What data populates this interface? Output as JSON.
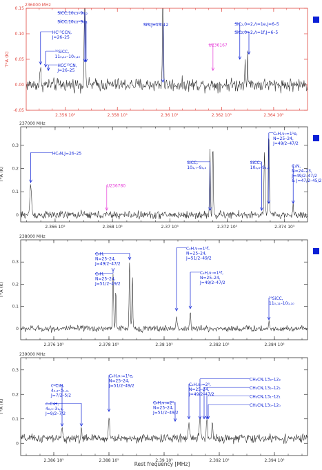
{
  "figure": {
    "xlabel": "Rest frequency [MHz]",
    "colors": {
      "axis_red": "#e0473f",
      "axis_black": "#333333",
      "annot_blue": "#0a1fd6",
      "annot_magenta": "#e63cd8",
      "trace": "#333333"
    }
  },
  "chart_data": [
    {
      "type": "line",
      "header": "236000 MHz",
      "ylabel": "T*A (K)",
      "xlim": [
        2354.5,
        2365.3
      ],
      "ylim": [
        -0.05,
        0.15
      ],
      "x_ticks": [
        2356,
        2358,
        2360,
        2362,
        2364
      ],
      "x_tick_labels": [
        "2.356 10⁵",
        "2.358 10⁵",
        "2.36 10⁵",
        "2.362 10⁵",
        "2.364 10⁵"
      ],
      "y_ticks": [
        -0.05,
        0.0,
        0.05,
        0.1,
        0.15
      ],
      "y_tick_labels": [
        "-0.05",
        "0.00",
        "0.05",
        "0.10",
        "0.15"
      ],
      "axis_color": "red",
      "noise": 0.009,
      "baseline": 0.0,
      "marker": true,
      "features": [
        {
          "x": 2355.05,
          "h": 0.028,
          "w": 0.07
        },
        {
          "x": 2356.75,
          "h": 0.25,
          "w": 0.06
        },
        {
          "x": 2359.75,
          "h": 0.25,
          "w": 0.05
        },
        {
          "x": 2362.9,
          "h": 0.06,
          "w": 0.04
        },
        {
          "x": 2363.0,
          "h": 0.065,
          "w": 0.04
        }
      ],
      "annotations": [
        {
          "lines": [
            "SiCC,10₈,₃–9₈,₂"
          ],
          "tx": 2355.7,
          "ty": 0.138,
          "ax": 2356.75,
          "ay": 0.045,
          "color": "blue"
        },
        {
          "lines": [
            "SiCC,10₈,₂–9₈,₁"
          ],
          "tx": 2355.7,
          "ty": 0.121,
          "ax": 2356.8,
          "ay": 0.045,
          "color": "blue"
        },
        {
          "lines": [
            "HC¹³CCN,",
            "J=26–25"
          ],
          "tx": 2355.5,
          "ty": 0.1,
          "ax": 2355.05,
          "ay": 0.04,
          "color": "blue"
        },
        {
          "lines": [
            "³⁰SiCC,",
            "11₀,₁₁–10₀,₁₀"
          ],
          "tx": 2355.6,
          "ty": 0.062,
          "ax": 2355.25,
          "ay": 0.035,
          "color": "blue"
        },
        {
          "lines": [
            "HCC¹³CN,",
            "J=26–25"
          ],
          "tx": 2355.7,
          "ty": 0.035,
          "ax": 2355.35,
          "ay": 0.028,
          "color": "blue"
        },
        {
          "lines": [
            "SiS,J=13–12"
          ],
          "tx": 2359.0,
          "ty": 0.115,
          "ax": 2359.75,
          "ay": 0.005,
          "color": "blue"
        },
        {
          "lines": [
            "SiC₂,0=2,Λ=1e,J=6–5"
          ],
          "tx": 2362.5,
          "ty": 0.116,
          "ax": 2362.7,
          "ay": 0.05,
          "color": "blue"
        },
        {
          "lines": [
            "SiC₂,0=2,Λ=1f,J=6–5"
          ],
          "tx": 2362.5,
          "ty": 0.1,
          "ax": 2363.05,
          "ay": 0.06,
          "color": "blue"
        },
        {
          "lines": [
            "U236167"
          ],
          "tx": 2361.5,
          "ty": 0.075,
          "ax": 2361.67,
          "ay": 0.028,
          "color": "magenta"
        }
      ]
    },
    {
      "type": "line",
      "header": "237000 MHz",
      "ylabel": "T*A (K)",
      "xlim": [
        2364.8,
        2374.8
      ],
      "ylim": [
        -0.03,
        0.38
      ],
      "x_ticks": [
        2366,
        2368,
        2370,
        2372,
        2374
      ],
      "x_tick_labels": [
        "2.366 10⁵",
        "2.368 10⁵",
        "2.37 10⁵",
        "2.372 10⁵",
        "2.374 10⁵"
      ],
      "y_ticks": [
        0.0,
        0.1,
        0.2,
        0.3
      ],
      "y_tick_labels": [
        "0",
        "0.1",
        "0.2",
        "0.3"
      ],
      "axis_color": "black",
      "noise": 0.012,
      "baseline": 0.0,
      "marker": true,
      "features": [
        {
          "x": 2365.15,
          "h": 0.13,
          "w": 0.08
        },
        {
          "x": 2371.4,
          "h": 0.28,
          "w": 0.04
        },
        {
          "x": 2371.5,
          "h": 0.33,
          "w": 0.04
        },
        {
          "x": 2373.3,
          "h": 0.28,
          "w": 0.05
        },
        {
          "x": 2373.45,
          "h": 0.37,
          "w": 0.05
        },
        {
          "x": 2374.3,
          "h": 0.04,
          "w": 0.05
        }
      ],
      "annotations": [
        {
          "lines": [
            "HC₃N,J=26–25"
          ],
          "tx": 2365.9,
          "ty": 0.26,
          "ax": 2365.15,
          "ay": 0.14,
          "color": "blue"
        },
        {
          "lines": [
            "U236780"
          ],
          "tx": 2367.8,
          "ty": 0.12,
          "ax": 2367.8,
          "ay": 0.02,
          "color": "magenta"
        },
        {
          "lines": [
            "SiCC,",
            "10₄,₇–9₄,₆"
          ],
          "tx": 2370.6,
          "ty": 0.22,
          "ax": 2371.4,
          "ay": 0.02,
          "color": "blue"
        },
        {
          "lines": [
            "SiCC,",
            "10₄,₆–9₄,₅"
          ],
          "tx": 2372.8,
          "ty": 0.22,
          "ax": 2373.2,
          "ay": 0.02,
          "color": "blue"
        },
        {
          "lines": [
            "C₄H,ν₇=1¹e,",
            "N=25–24,",
            "J=49/2–47/2"
          ],
          "tx": 2373.6,
          "ty": 0.345,
          "ax": 2373.45,
          "ay": 0.05,
          "color": "blue"
        },
        {
          "lines": [
            "C₃N,",
            "N=24–23,",
            "J=49/2–47/2",
            "& J=47/2–45/2"
          ],
          "tx": 2374.25,
          "ty": 0.205,
          "ax": 2374.3,
          "ay": 0.05,
          "color": "blue"
        }
      ]
    },
    {
      "type": "line",
      "header": "238000 MHz",
      "ylabel": "T*A (K)",
      "xlim": [
        2374.8,
        2385.2
      ],
      "ylim": [
        -0.05,
        0.4
      ],
      "x_ticks": [
        2376,
        2378,
        2380,
        2382,
        2384
      ],
      "x_tick_labels": [
        "2.376 10⁵",
        "2.378 10⁵",
        "2.38 10⁵",
        "2.382 10⁵",
        "2.384 10⁵"
      ],
      "y_ticks": [
        0.0,
        0.1,
        0.2,
        0.3
      ],
      "y_tick_labels": [
        "0",
        "0.1",
        "0.2",
        "0.3"
      ],
      "axis_color": "black",
      "noise": 0.01,
      "baseline": 0.0,
      "marker": true,
      "features": [
        {
          "x": 2378.15,
          "h": 0.24,
          "w": 0.05
        },
        {
          "x": 2378.25,
          "h": 0.2,
          "w": 0.04
        },
        {
          "x": 2378.75,
          "h": 0.3,
          "w": 0.05
        },
        {
          "x": 2378.85,
          "h": 0.26,
          "w": 0.04
        },
        {
          "x": 2380.45,
          "h": 0.06,
          "w": 0.06
        },
        {
          "x": 2380.95,
          "h": 0.07,
          "w": 0.06
        },
        {
          "x": 2383.8,
          "h": 0.03,
          "w": 0.05
        }
      ],
      "annotations": [
        {
          "lines": [
            "C₄H,",
            "N=25–24,",
            "J=49/2–47/2"
          ],
          "tx": 2377.5,
          "ty": 0.33,
          "ax": 2378.75,
          "ay": 0.31,
          "color": "blue"
        },
        {
          "lines": [
            "C₄H,",
            "N=25–24,",
            "J=51/2–49/2"
          ],
          "tx": 2377.5,
          "ty": 0.24,
          "ax": 2378.15,
          "ay": 0.26,
          "color": "blue"
        },
        {
          "lines": [
            "C₄H,ν₇=1¹f,",
            "N=25–24,",
            "J=51/2–49/2"
          ],
          "tx": 2380.8,
          "ty": 0.355,
          "ax": 2380.45,
          "ay": 0.08,
          "color": "blue"
        },
        {
          "lines": [
            "C₄H,ν₇=1¹f,",
            "N=25–24,",
            "J=49/2–47/2"
          ],
          "tx": 2381.3,
          "ty": 0.245,
          "ax": 2380.95,
          "ay": 0.09,
          "color": "blue"
        },
        {
          "lines": [
            "²⁹SiCC,",
            "11₀,₁₁–10₀,₁₀"
          ],
          "tx": 2383.8,
          "ty": 0.13,
          "ax": 2383.8,
          "ay": 0.04,
          "color": "blue"
        }
      ]
    },
    {
      "type": "line",
      "header": "239000 MHz",
      "ylabel": "T*A (K)",
      "xlim": [
        2384.8,
        2395.2
      ],
      "ylim": [
        -0.05,
        0.35
      ],
      "x_ticks": [
        2386,
        2388,
        2390,
        2392,
        2394
      ],
      "x_tick_labels": [
        "2.386 10⁵",
        "2.388 10⁵",
        "2.39 10⁵",
        "2.392 10⁵",
        "2.394 10⁵"
      ],
      "y_ticks": [
        0.0,
        0.1,
        0.2,
        0.3
      ],
      "y_tick_labels": [
        "0",
        "0.1",
        "0.2",
        "0.3"
      ],
      "axis_color": "black",
      "noise": 0.012,
      "baseline": 0.02,
      "marker": false,
      "features": [
        {
          "x": 2386.3,
          "h": 0.04,
          "w": 0.05
        },
        {
          "x": 2387.0,
          "h": 0.04,
          "w": 0.05
        },
        {
          "x": 2388.0,
          "h": 0.09,
          "w": 0.06
        },
        {
          "x": 2390.9,
          "h": 0.06,
          "w": 0.08
        },
        {
          "x": 2391.3,
          "h": 0.08,
          "w": 0.08
        },
        {
          "x": 2391.55,
          "h": 0.1,
          "w": 0.05
        },
        {
          "x": 2391.75,
          "h": 0.08,
          "w": 0.05
        }
      ],
      "annotations": [
        {
          "lines": [
            "c–C₃H,",
            "4₂,₃–3₁,₃,",
            "J=7/2–5/2"
          ],
          "tx": 2385.9,
          "ty": 0.23,
          "ax": 2386.3,
          "ay": 0.07,
          "color": "blue"
        },
        {
          "lines": [
            "c–C₃H,",
            "4₂,₃–3₁,₃,",
            "J=9/2–7/2"
          ],
          "tx": 2385.7,
          "ty": 0.155,
          "ax": 2387.0,
          "ay": 0.07,
          "color": "blue"
        },
        {
          "lines": [
            "C₄H,ν₇=1¹e,",
            "N=25–24,",
            "J=51/2–49/2"
          ],
          "tx": 2388.0,
          "ty": 0.27,
          "ax": 2388.0,
          "ay": 0.13,
          "color": "blue"
        },
        {
          "lines": [
            "C₄H,ν₇=2⁰,",
            "N=25–24,",
            "J=49/2–47/2"
          ],
          "tx": 2390.9,
          "ty": 0.235,
          "ax": 2390.9,
          "ay": 0.1,
          "color": "blue"
        },
        {
          "lines": [
            "C₄H,ν₇=2⁰,",
            "N=25–24,",
            "J=51/2–49/2"
          ],
          "tx": 2389.6,
          "ty": 0.16,
          "ax": 2390.4,
          "ay": 0.09,
          "color": "blue"
        },
        {
          "lines": [
            "CH₃CN,13₃–12₃"
          ],
          "tx": 2393.1,
          "ty": 0.255,
          "ax": 2391.3,
          "ay": 0.1,
          "color": "blue"
        },
        {
          "lines": [
            "CH₃CN,13₂–12₂"
          ],
          "tx": 2393.1,
          "ty": 0.22,
          "ax": 2391.45,
          "ay": 0.1,
          "color": "blue"
        },
        {
          "lines": [
            "CH₃CN,13₁–12₁"
          ],
          "tx": 2393.1,
          "ty": 0.185,
          "ax": 2391.55,
          "ay": 0.1,
          "color": "blue"
        },
        {
          "lines": [
            "CH₃CN,13₀–12₀"
          ],
          "tx": 2393.1,
          "ty": 0.15,
          "ax": 2391.6,
          "ay": 0.1,
          "color": "blue"
        }
      ]
    }
  ]
}
